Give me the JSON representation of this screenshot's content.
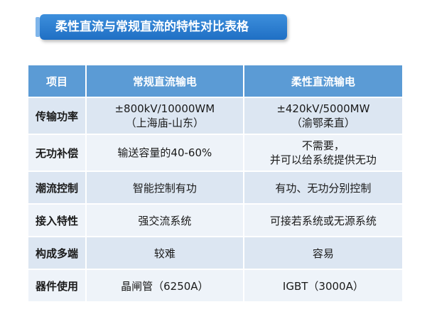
{
  "title": "柔性直流与常规直流的特性对比表格",
  "headers": [
    "项目",
    "常规直流输电",
    "柔性直流输电"
  ],
  "rows": [
    {
      "item": "传输功率",
      "conventional": [
        "±800kV/10000WM",
        "（上海庙-山东）"
      ],
      "flexible": [
        "±420kV/5000MW",
        "（渝鄂柔直）"
      ]
    },
    {
      "item": "无功补偿",
      "conventional": [
        "输送容量的40-60%"
      ],
      "flexible": [
        "不需要，",
        "并可以给系统提供无功"
      ]
    },
    {
      "item": "潮流控制",
      "conventional": [
        "智能控制有功"
      ],
      "flexible": [
        "有功、无功分别控制"
      ]
    },
    {
      "item": "接入特性",
      "conventional": [
        "强交流系统"
      ],
      "flexible": [
        "可接若系统或无源系统"
      ]
    },
    {
      "item": "构成多端",
      "conventional": [
        "较难"
      ],
      "flexible": [
        "容易"
      ]
    },
    {
      "item": "器件使用",
      "conventional": [
        "晶闸管（6250A）"
      ],
      "flexible": [
        "IGBT（3000A）"
      ]
    }
  ]
}
